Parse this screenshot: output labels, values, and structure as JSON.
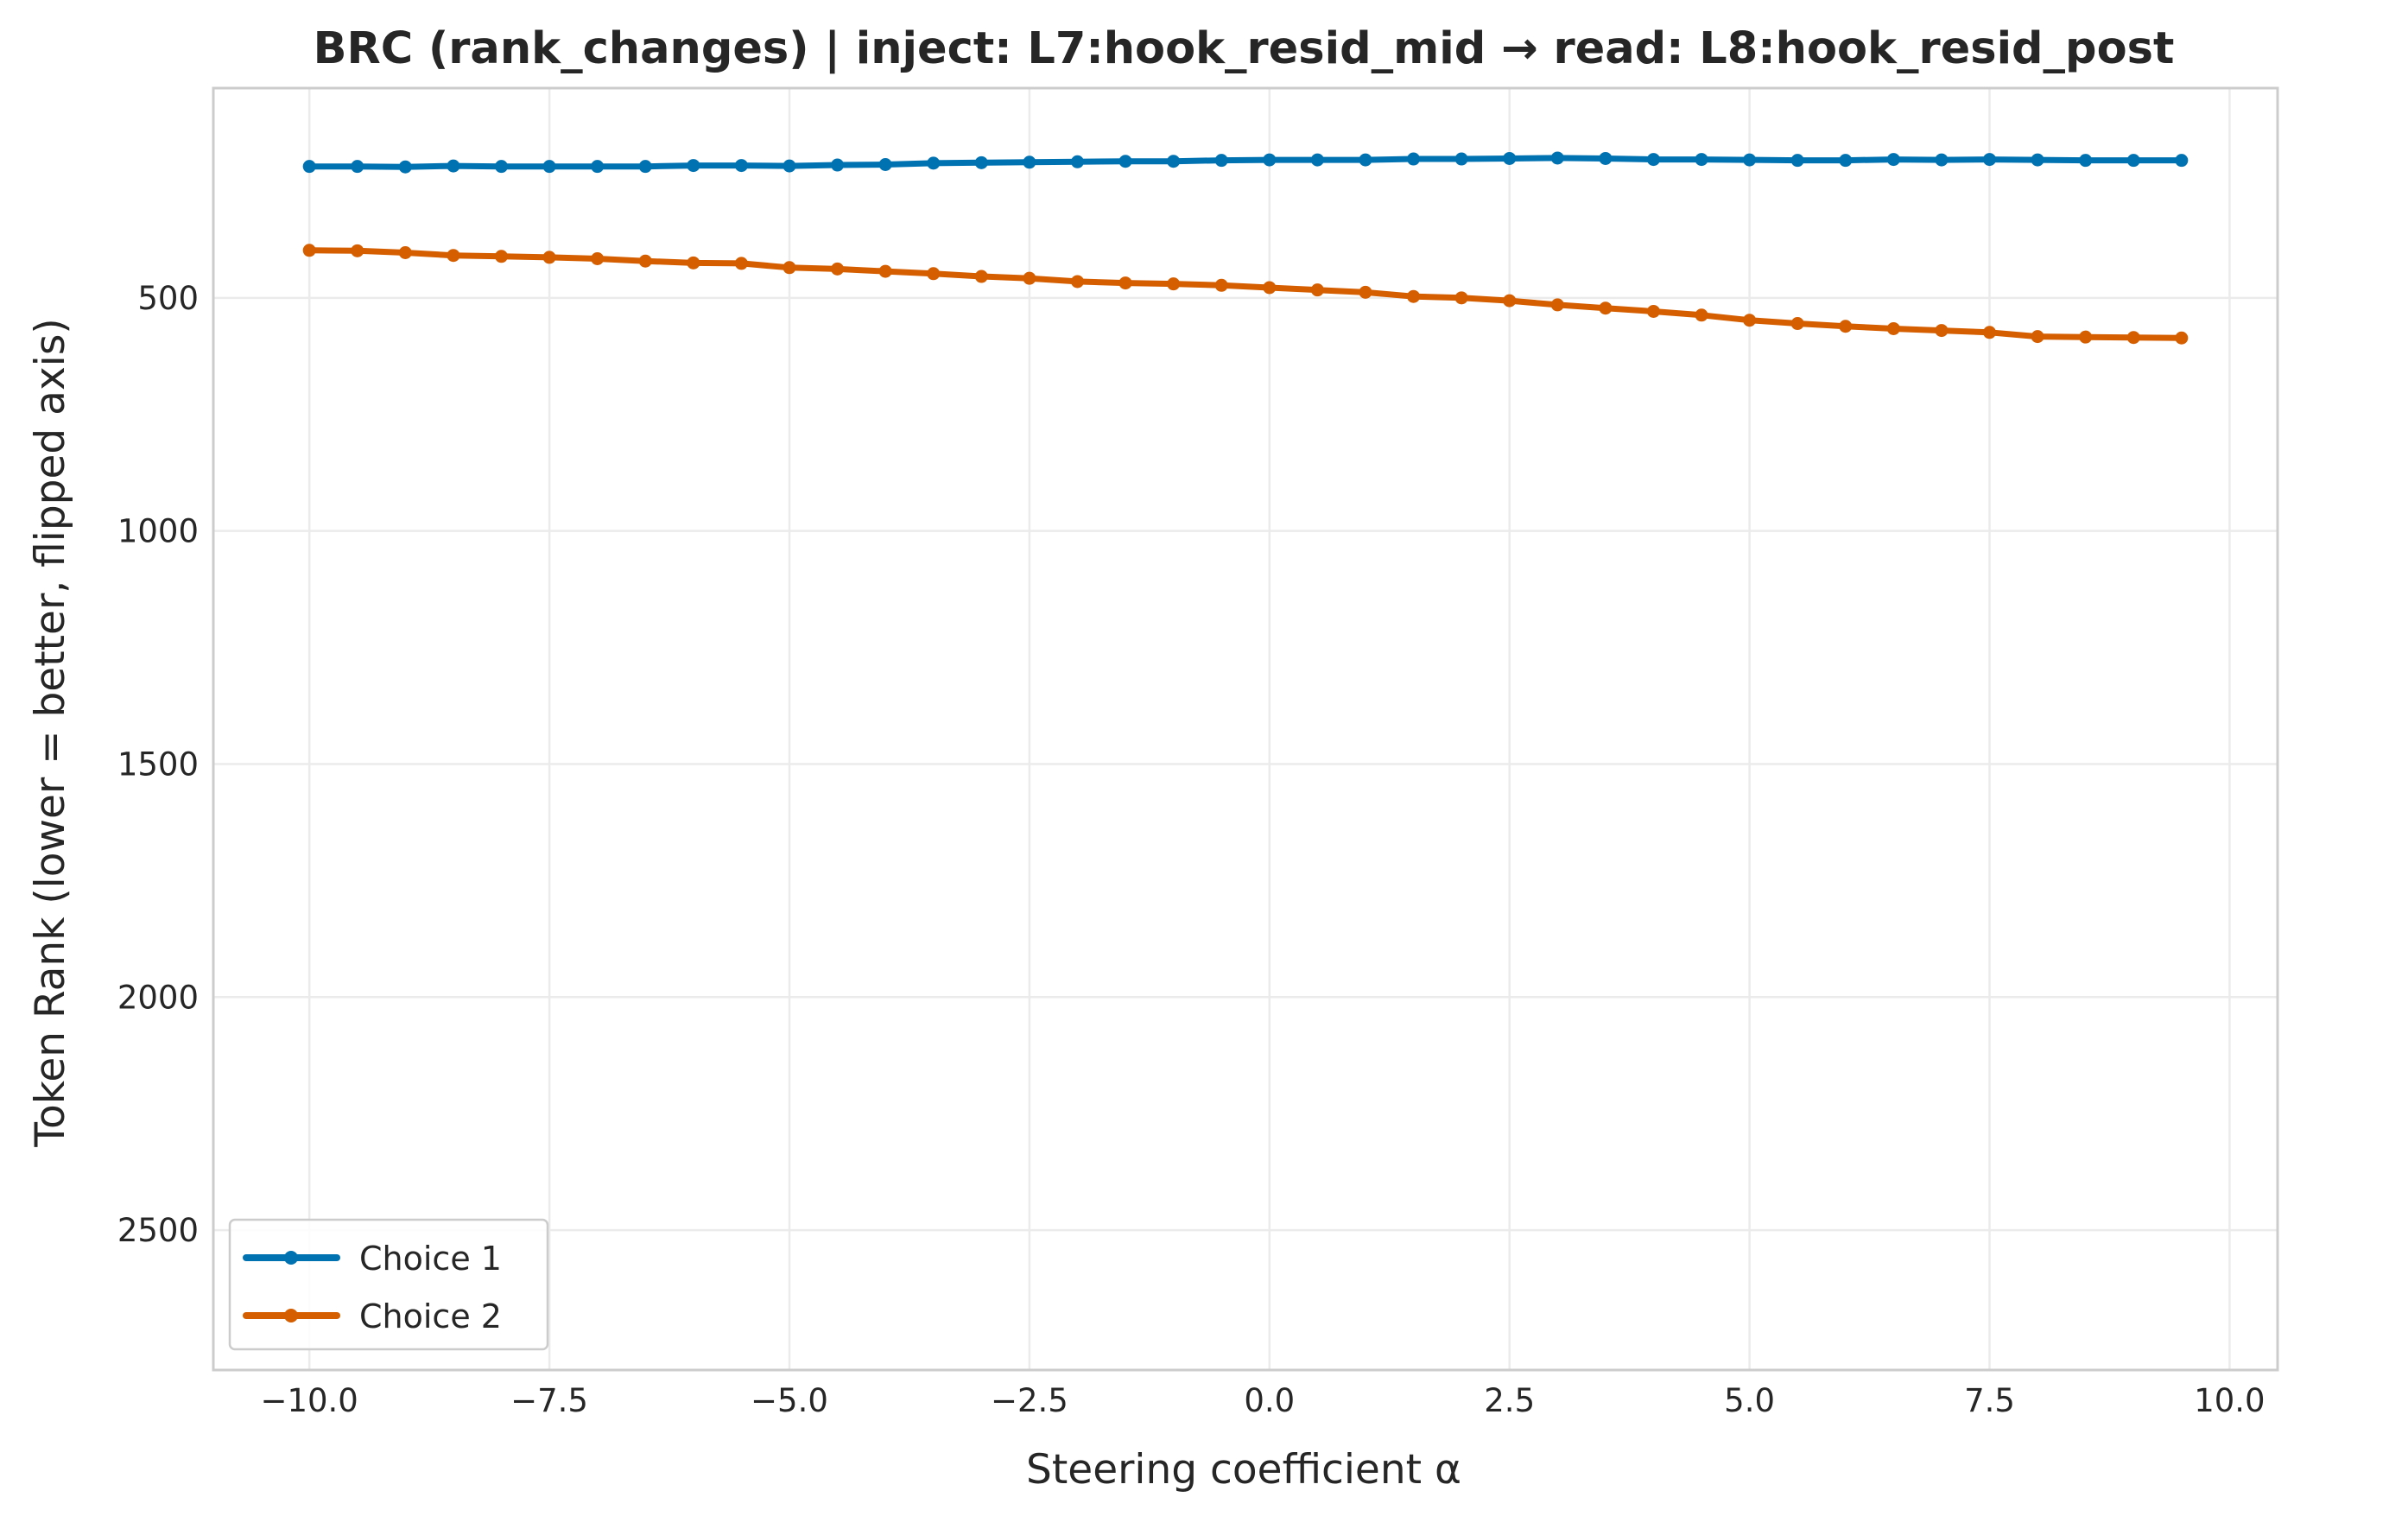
{
  "chart_data": {
    "type": "line",
    "title": "BRC (rank_changes) | inject: L7:hook_resid_mid → read: L8:hook_resid_post",
    "xlabel": "Steering coefficient α",
    "ylabel": "Token Rank (lower = better, flipped axis)",
    "xlim": [
      -11.0,
      10.5
    ],
    "ylim": [
      2800,
      50
    ],
    "y_inverted": true,
    "grid": true,
    "legend_position": "lower-left",
    "x_ticks": [
      -10.0,
      -7.5,
      -5.0,
      -2.5,
      0.0,
      2.5,
      5.0,
      7.5,
      10.0
    ],
    "x_tick_labels": [
      "−10.0",
      "−7.5",
      "−5.0",
      "−2.5",
      "0.0",
      "2.5",
      "5.0",
      "7.5",
      "10.0"
    ],
    "y_ticks": [
      500,
      1000,
      1500,
      2000,
      2500
    ],
    "y_tick_labels": [
      "500",
      "1000",
      "1500",
      "2000",
      "2500"
    ],
    "x": [
      -10.0,
      -9.5,
      -9.0,
      -8.5,
      -8.0,
      -7.5,
      -7.0,
      -6.5,
      -6.0,
      -5.5,
      -5.0,
      -4.5,
      -4.0,
      -3.5,
      -3.0,
      -2.5,
      -2.0,
      -1.5,
      -1.0,
      -0.5,
      0.0,
      0.5,
      1.0,
      1.5,
      2.0,
      2.5,
      3.0,
      3.5,
      4.0,
      4.5,
      5.0,
      5.5,
      6.0,
      6.5,
      7.0,
      7.5,
      8.0,
      8.5,
      9.0,
      9.5
    ],
    "series": [
      {
        "name": "Choice 1",
        "color": "#0072B2",
        "values": [
          218,
          218,
          219,
          217,
          218,
          218,
          218,
          218,
          216,
          216,
          217,
          215,
          214,
          211,
          210,
          209,
          208,
          207,
          207,
          205,
          204,
          204,
          204,
          202,
          202,
          201,
          200,
          201,
          203,
          203,
          204,
          205,
          205,
          203,
          204,
          203,
          204,
          205,
          205,
          205
        ]
      },
      {
        "name": "Choice 2",
        "color": "#D55E00",
        "values": [
          398,
          399,
          403,
          409,
          411,
          413,
          416,
          421,
          425,
          426,
          435,
          438,
          443,
          448,
          454,
          458,
          465,
          468,
          470,
          473,
          478,
          483,
          488,
          497,
          500,
          506,
          515,
          522,
          529,
          537,
          548,
          555,
          561,
          566,
          570,
          574,
          583,
          584,
          585,
          586
        ]
      }
    ]
  }
}
